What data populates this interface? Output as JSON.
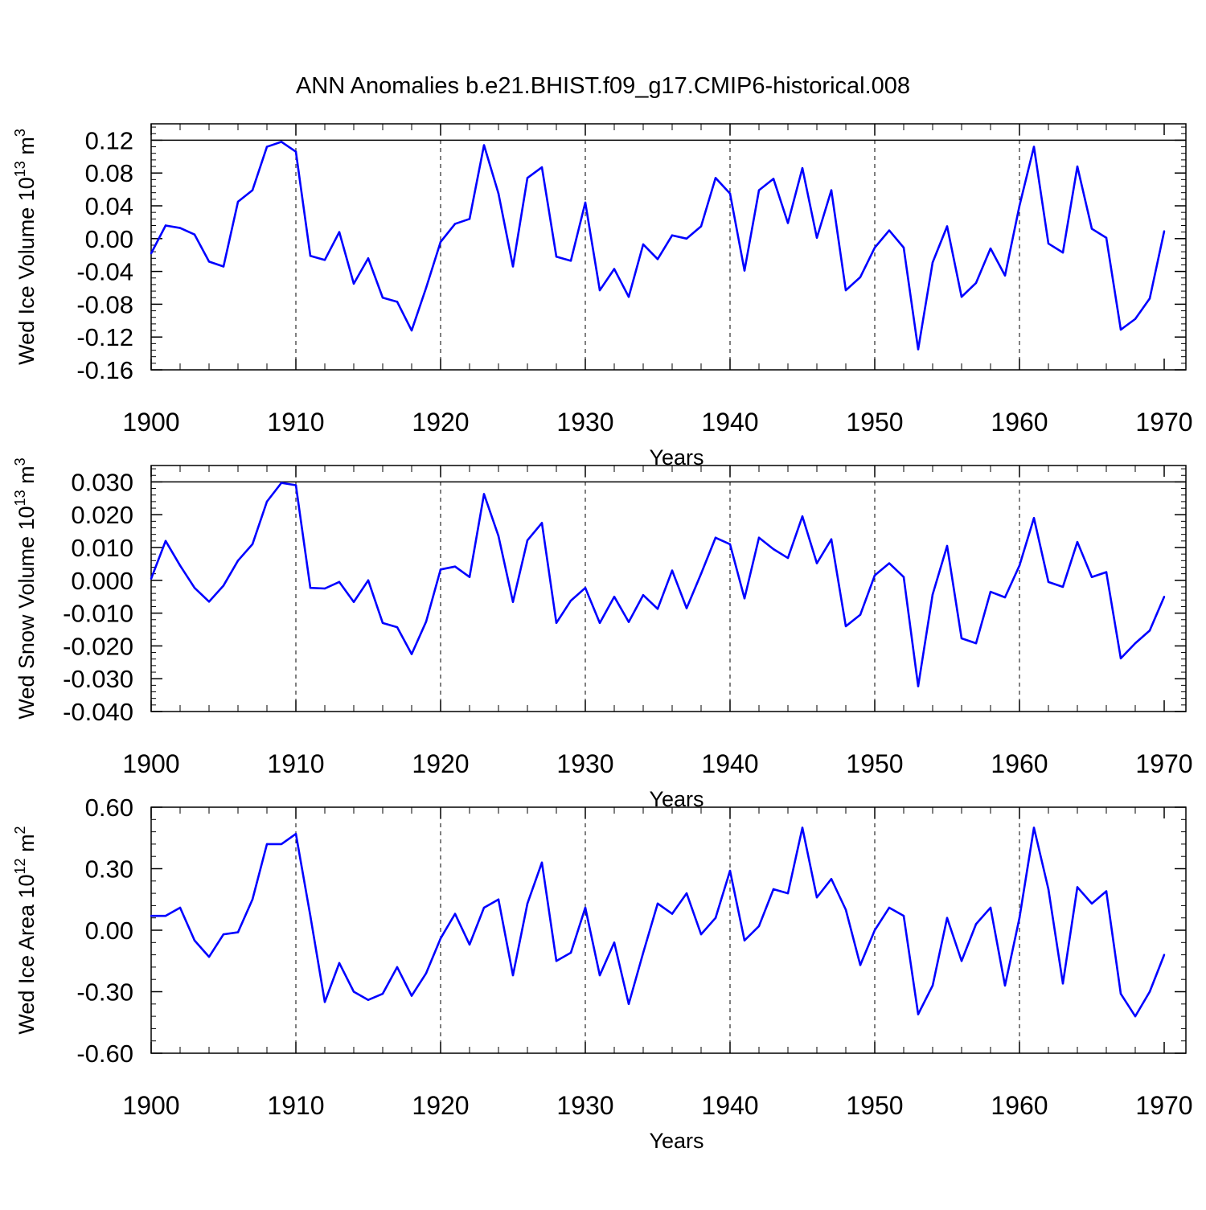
{
  "title": "ANN Anomalies b.e21.BHIST.f09_g17.CMIP6-historical.008",
  "colors": {
    "line": "#0000ff",
    "axis": "#000000",
    "grid": "#000000"
  },
  "chart_data": [
    {
      "type": "line",
      "ylabel_main": "Wed Ice Volume 10",
      "ylabel_exp": "13",
      "ylabel_unit": " m",
      "ylabel_unit_exp": "3",
      "xlabel": "Years",
      "xlim": [
        1900,
        1970
      ],
      "ylim": [
        -0.16,
        0.14
      ],
      "yticks": [
        -0.16,
        -0.12,
        -0.08,
        -0.04,
        0.0,
        0.04,
        0.08,
        0.12
      ],
      "ytick_labels": [
        "-0.16",
        "-0.12",
        "-0.08",
        "-0.04",
        "0.00",
        "0.04",
        "0.08",
        "0.12"
      ],
      "xticks": [
        1900,
        1910,
        1920,
        1930,
        1940,
        1950,
        1960,
        1970
      ],
      "xtick_labels": [
        "1900",
        "1910",
        "1920",
        "1930",
        "1940",
        "1950",
        "1960",
        "1970"
      ],
      "start_year": 1900,
      "values": [
        -0.018,
        0.016,
        0.013,
        0.005,
        -0.028,
        -0.034,
        0.045,
        0.059,
        0.112,
        0.118,
        0.106,
        -0.021,
        -0.026,
        0.008,
        -0.055,
        -0.024,
        -0.072,
        -0.077,
        -0.112,
        -0.06,
        -0.004,
        0.018,
        0.024,
        0.114,
        0.055,
        -0.034,
        0.074,
        0.087,
        -0.022,
        -0.027,
        0.044,
        -0.063,
        -0.037,
        -0.071,
        -0.007,
        -0.025,
        0.004,
        0.0,
        0.015,
        0.074,
        0.055,
        -0.039,
        0.059,
        0.073,
        0.019,
        0.086,
        0.001,
        0.059,
        -0.063,
        -0.047,
        -0.011,
        0.01,
        -0.011,
        -0.135,
        -0.029,
        0.015,
        -0.071,
        -0.054,
        -0.012,
        -0.045,
        0.04,
        0.112,
        -0.006,
        -0.017,
        0.088,
        0.012,
        0.001,
        -0.111,
        -0.098,
        -0.073,
        0.009
      ]
    },
    {
      "type": "line",
      "ylabel_main": "Wed Snow Volume 10",
      "ylabel_exp": "13",
      "ylabel_unit": " m",
      "ylabel_unit_exp": "3",
      "xlabel": "Years",
      "xlim": [
        1900,
        1970
      ],
      "ylim": [
        -0.04,
        0.035
      ],
      "yticks": [
        -0.04,
        -0.03,
        -0.02,
        -0.01,
        0.0,
        0.01,
        0.02,
        0.03
      ],
      "ytick_labels": [
        "-0.040",
        "-0.030",
        "-0.020",
        "-0.010",
        "0.000",
        "0.010",
        "0.020",
        "0.030"
      ],
      "xticks": [
        1900,
        1910,
        1920,
        1930,
        1940,
        1950,
        1960,
        1970
      ],
      "xtick_labels": [
        "1900",
        "1910",
        "1920",
        "1930",
        "1940",
        "1950",
        "1960",
        "1970"
      ],
      "start_year": 1900,
      "values": [
        0.0005,
        0.012,
        0.0045,
        -0.0023,
        -0.0065,
        -0.0016,
        0.006,
        0.011,
        0.024,
        0.0297,
        0.029,
        -0.0023,
        -0.0025,
        -0.0005,
        -0.0066,
        0.0,
        -0.013,
        -0.0143,
        -0.0225,
        -0.0126,
        0.0033,
        0.0042,
        0.001,
        0.0263,
        0.0135,
        -0.0066,
        0.0122,
        0.0175,
        -0.013,
        -0.0062,
        -0.0023,
        -0.013,
        -0.005,
        -0.0127,
        -0.0045,
        -0.0087,
        0.003,
        -0.0085,
        0.002,
        0.013,
        0.011,
        -0.0055,
        0.013,
        0.0095,
        0.0068,
        0.0195,
        0.0052,
        0.0125,
        -0.014,
        -0.0105,
        0.0015,
        0.0052,
        0.001,
        -0.0323,
        -0.0043,
        0.0105,
        -0.0177,
        -0.0192,
        -0.0035,
        -0.0052,
        0.0045,
        0.019,
        -0.0005,
        -0.002,
        0.0117,
        0.001,
        0.0025,
        -0.0238,
        -0.0192,
        -0.0153,
        -0.005
      ]
    },
    {
      "type": "line",
      "ylabel_main": "Wed Ice Area 10",
      "ylabel_exp": "12",
      "ylabel_unit": " m",
      "ylabel_unit_exp": "2",
      "xlabel": "Years",
      "xlim": [
        1900,
        1970
      ],
      "ylim": [
        -0.6,
        0.6
      ],
      "yticks": [
        -0.6,
        -0.3,
        0.0,
        0.3,
        0.6
      ],
      "ytick_labels": [
        "-0.60",
        "-0.30",
        "0.00",
        "0.30",
        "0.60"
      ],
      "xticks": [
        1900,
        1910,
        1920,
        1930,
        1940,
        1950,
        1960,
        1970
      ],
      "xtick_labels": [
        "1900",
        "1910",
        "1920",
        "1930",
        "1940",
        "1950",
        "1960",
        "1970"
      ],
      "start_year": 1900,
      "values": [
        0.07,
        0.07,
        0.11,
        -0.05,
        -0.13,
        -0.02,
        -0.01,
        0.15,
        0.42,
        0.42,
        0.47,
        0.07,
        -0.35,
        -0.16,
        -0.3,
        -0.34,
        -0.31,
        -0.18,
        -0.32,
        -0.21,
        -0.04,
        0.08,
        -0.07,
        0.11,
        0.15,
        -0.22,
        0.13,
        0.33,
        -0.15,
        -0.11,
        0.11,
        -0.22,
        -0.06,
        -0.36,
        -0.11,
        0.13,
        0.08,
        0.18,
        -0.02,
        0.06,
        0.29,
        -0.05,
        0.02,
        0.2,
        0.18,
        0.5,
        0.16,
        0.25,
        0.1,
        -0.17,
        0.0,
        0.11,
        0.07,
        -0.41,
        -0.27,
        0.06,
        -0.15,
        0.03,
        0.11,
        -0.27,
        0.06,
        0.5,
        0.2,
        -0.26,
        0.21,
        0.13,
        0.19,
        -0.31,
        -0.42,
        -0.3,
        -0.12
      ]
    }
  ]
}
